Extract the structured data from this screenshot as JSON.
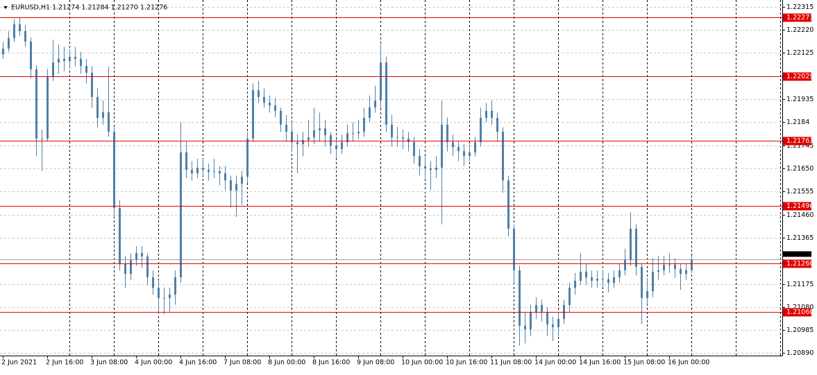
{
  "chart_data": {
    "type": "candlestick",
    "title": "EURUSD,H1  1.21274 1.21284 1.21270 1.21276",
    "color": "#4f7fa6",
    "ylim": [
      1.2088,
      1.22343
    ],
    "yticks": [
      1.22315,
      {
        "value": 1.2222,
        "label": "1.22220"
      },
      1.22125,
      1.21935,
      1.2184,
      1.21745,
      {
        "value": 1.2165,
        "label": "1.21650"
      },
      1.21555,
      {
        "value": 1.2146,
        "label": "1.21460"
      },
      1.21365,
      1.21175,
      {
        "value": 1.2108,
        "label": "1.21080"
      },
      1.20985,
      {
        "value": 1.2089,
        "label": "1.20890"
      }
    ],
    "grid": true,
    "levels": [
      1.22273,
      1.22029,
      1.21763,
      1.21496,
      {
        "value": 1.2126,
        "label": "1.21260"
      },
      {
        "value": 1.2106,
        "label": "1.21060"
      }
    ],
    "level_color": "#e00000",
    "current_price": 1.21276,
    "categories": [
      "2 Jun 2021",
      null,
      null,
      null,
      null,
      null,
      null,
      null,
      "2 Jun 16:00",
      null,
      null,
      null,
      null,
      null,
      null,
      null,
      "3 Jun 08:00",
      null,
      null,
      null,
      null,
      null,
      null,
      null,
      "4 Jun 00:00",
      null,
      null,
      null,
      null,
      null,
      null,
      null,
      "4 Jun 16:00",
      null,
      null,
      null,
      null,
      null,
      null,
      null,
      "7 Jun 08:00",
      null,
      null,
      null,
      null,
      null,
      null,
      null,
      "8 Jun 00:00",
      null,
      null,
      null,
      null,
      null,
      null,
      null,
      "8 Jun 16:00",
      null,
      null,
      null,
      null,
      null,
      null,
      null,
      "9 Jun 08:00",
      null,
      null,
      null,
      null,
      null,
      null,
      null,
      "10 Jun 00:00",
      null,
      null,
      null,
      null,
      null,
      null,
      null,
      "10 Jun 16:00",
      null,
      null,
      null,
      null,
      null,
      null,
      null,
      "11 Jun 08:00",
      null,
      null,
      null,
      null,
      null,
      null,
      null,
      "14 Jun 00:00",
      null,
      null,
      null,
      null,
      null,
      null,
      null,
      "14 Jun 16:00",
      null,
      null,
      null,
      null,
      null,
      null,
      null,
      "15 Jun 08:00",
      null,
      null,
      null,
      null,
      null,
      null,
      null,
      "16 Jun 00:00",
      null,
      null,
      null,
      null
    ],
    "candles": [
      [
        1.2212,
        1.2217,
        1.221,
        1.22143
      ],
      [
        1.22143,
        1.22215,
        1.2213,
        1.22186
      ],
      [
        1.22186,
        1.22265,
        1.2217,
        1.22243
      ],
      [
        1.22243,
        1.2227,
        1.22195,
        1.22215
      ],
      [
        1.22215,
        1.2224,
        1.2215,
        1.22172
      ],
      [
        1.22172,
        1.2219,
        1.2202,
        1.22058
      ],
      [
        1.22058,
        1.22075,
        1.217,
        1.21773
      ],
      [
        1.21773,
        1.2181,
        1.2164,
        1.21773
      ],
      [
        1.21773,
        1.2206,
        1.2176,
        1.22029
      ],
      [
        1.22029,
        1.2218,
        1.2201,
        1.22086
      ],
      [
        1.22086,
        1.2216,
        1.2204,
        1.22101
      ],
      [
        1.22101,
        1.2215,
        1.2205,
        1.22092
      ],
      [
        1.22092,
        1.2214,
        1.2206,
        1.22109
      ],
      [
        1.22109,
        1.2215,
        1.2207,
        1.22101
      ],
      [
        1.22101,
        1.2213,
        1.2204,
        1.22072
      ],
      [
        1.22072,
        1.221,
        1.22,
        1.22044
      ],
      [
        1.22044,
        1.2207,
        1.219,
        1.21944
      ],
      [
        1.21944,
        1.2198,
        1.2182,
        1.21858
      ],
      [
        1.21858,
        1.2193,
        1.2183,
        1.21881
      ],
      [
        1.21881,
        1.2207,
        1.2178,
        1.21801
      ],
      [
        1.21801,
        1.2182,
        1.2145,
        1.21487
      ],
      [
        1.21487,
        1.2152,
        1.2123,
        1.21259
      ],
      [
        1.21259,
        1.2129,
        1.2116,
        1.21216
      ],
      [
        1.21216,
        1.213,
        1.2119,
        1.21273
      ],
      [
        1.21273,
        1.2133,
        1.2125,
        1.21302
      ],
      [
        1.21302,
        1.2133,
        1.2124,
        1.21288
      ],
      [
        1.21288,
        1.213,
        1.2117,
        1.21202
      ],
      [
        1.21202,
        1.2123,
        1.2113,
        1.21159
      ],
      [
        1.21159,
        1.2119,
        1.2105,
        1.21117
      ],
      [
        1.21117,
        1.2116,
        1.2105,
        1.21117
      ],
      [
        1.21117,
        1.2116,
        1.2106,
        1.21131
      ],
      [
        1.21131,
        1.2123,
        1.2109,
        1.21202
      ],
      [
        1.21202,
        1.2184,
        1.2118,
        1.21716
      ],
      [
        1.21716,
        1.2176,
        1.2161,
        1.21644
      ],
      [
        1.21644,
        1.2168,
        1.216,
        1.2163
      ],
      [
        1.2163,
        1.2169,
        1.2161,
        1.21653
      ],
      [
        1.21653,
        1.2169,
        1.2162,
        1.21644
      ],
      [
        1.21644,
        1.2167,
        1.216,
        1.21636
      ],
      [
        1.21636,
        1.2169,
        1.2161,
        1.21639
      ],
      [
        1.21639,
        1.2166,
        1.2158,
        1.2163
      ],
      [
        1.2163,
        1.2166,
        1.2156,
        1.21601
      ],
      [
        1.21601,
        1.2162,
        1.2149,
        1.21559
      ],
      [
        1.21559,
        1.2162,
        1.2145,
        1.21587
      ],
      [
        1.21587,
        1.2164,
        1.215,
        1.21616
      ],
      [
        1.21616,
        1.218,
        1.2159,
        1.21773
      ],
      [
        1.21773,
        1.22,
        1.2176,
        1.21972
      ],
      [
        1.21972,
        1.2201,
        1.2192,
        1.21944
      ],
      [
        1.21944,
        1.2198,
        1.219,
        1.21921
      ],
      [
        1.21921,
        1.2195,
        1.2188,
        1.21909
      ],
      [
        1.21909,
        1.2194,
        1.2186,
        1.21887
      ],
      [
        1.21887,
        1.219,
        1.218,
        1.2183
      ],
      [
        1.2183,
        1.2187,
        1.2176,
        1.21801
      ],
      [
        1.21801,
        1.2184,
        1.2172,
        1.21758
      ],
      [
        1.21758,
        1.2179,
        1.2163,
        1.2175
      ],
      [
        1.2175,
        1.218,
        1.217,
        1.21767
      ],
      [
        1.21767,
        1.2185,
        1.2174,
        1.21778
      ],
      [
        1.21778,
        1.219,
        1.2175,
        1.21807
      ],
      [
        1.21807,
        1.2188,
        1.2176,
        1.21815
      ],
      [
        1.21815,
        1.2185,
        1.2174,
        1.21787
      ],
      [
        1.21787,
        1.218,
        1.2171,
        1.21744
      ],
      [
        1.21744,
        1.2177,
        1.2169,
        1.2173
      ],
      [
        1.2173,
        1.2179,
        1.2171,
        1.21758
      ],
      [
        1.21758,
        1.2183,
        1.2174,
        1.21795
      ],
      [
        1.21795,
        1.2184,
        1.2176,
        1.21795
      ],
      [
        1.21795,
        1.2185,
        1.2177,
        1.21801
      ],
      [
        1.21801,
        1.219,
        1.2178,
        1.21858
      ],
      [
        1.21858,
        1.2195,
        1.2184,
        1.21901
      ],
      [
        1.21901,
        1.2199,
        1.2188,
        1.21929
      ],
      [
        1.21929,
        1.2216,
        1.219,
        1.22086
      ],
      [
        1.22086,
        1.2211,
        1.218,
        1.2183
      ],
      [
        1.2183,
        1.2187,
        1.2174,
        1.21778
      ],
      [
        1.21778,
        1.2182,
        1.2174,
        1.21778
      ],
      [
        1.21778,
        1.2181,
        1.2173,
        1.21773
      ],
      [
        1.21773,
        1.218,
        1.2172,
        1.21758
      ],
      [
        1.21758,
        1.2178,
        1.2167,
        1.21701
      ],
      [
        1.21701,
        1.2173,
        1.2162,
        1.21659
      ],
      [
        1.21659,
        1.217,
        1.2161,
        1.2165
      ],
      [
        1.2165,
        1.2168,
        1.2156,
        1.21644
      ],
      [
        1.21644,
        1.217,
        1.2161,
        1.21653
      ],
      [
        1.21653,
        1.2193,
        1.2142,
        1.2183
      ],
      [
        1.2183,
        1.2186,
        1.2172,
        1.21758
      ],
      [
        1.21758,
        1.2179,
        1.217,
        1.21738
      ],
      [
        1.21738,
        1.2176,
        1.2168,
        1.21721
      ],
      [
        1.21721,
        1.2175,
        1.2166,
        1.21701
      ],
      [
        1.21701,
        1.2175,
        1.2168,
        1.21716
      ],
      [
        1.21716,
        1.2178,
        1.217,
        1.21758
      ],
      [
        1.21758,
        1.219,
        1.2174,
        1.21858
      ],
      [
        1.21858,
        1.2192,
        1.2184,
        1.21887
      ],
      [
        1.21887,
        1.2193,
        1.2183,
        1.21858
      ],
      [
        1.21858,
        1.2188,
        1.2176,
        1.21801
      ],
      [
        1.21801,
        1.2182,
        1.2155,
        1.21601
      ],
      [
        1.21601,
        1.2162,
        1.2137,
        1.21402
      ],
      [
        1.21402,
        1.2142,
        1.2118,
        1.21231
      ],
      [
        1.21231,
        1.2125,
        1.2092,
        1.21003
      ],
      [
        1.21003,
        1.2106,
        1.2093,
        1.20988
      ],
      [
        1.20988,
        1.2109,
        1.2096,
        1.2106
      ],
      [
        1.2106,
        1.2112,
        1.2103,
        1.21088
      ],
      [
        1.21088,
        1.2111,
        1.2102,
        1.2106
      ],
      [
        1.2106,
        1.2108,
        1.2096,
        1.21008
      ],
      [
        1.21008,
        1.2104,
        1.2094,
        1.20997
      ],
      [
        1.20997,
        1.2106,
        1.2096,
        1.21031
      ],
      [
        1.21031,
        1.2111,
        1.2101,
        1.21088
      ],
      [
        1.21088,
        1.2118,
        1.2106,
        1.21159
      ],
      [
        1.21159,
        1.2122,
        1.2113,
        1.21188
      ],
      [
        1.21188,
        1.213,
        1.2117,
        1.21225
      ],
      [
        1.21225,
        1.2126,
        1.2117,
        1.21202
      ],
      [
        1.21202,
        1.2123,
        1.2116,
        1.21188
      ],
      [
        1.21188,
        1.2123,
        1.2116,
        1.21196
      ],
      [
        1.21196,
        1.2123,
        1.2116,
        1.21194
      ],
      [
        1.21194,
        1.2122,
        1.2114,
        1.21179
      ],
      [
        1.21179,
        1.2123,
        1.2116,
        1.21202
      ],
      [
        1.21202,
        1.2126,
        1.2118,
        1.21231
      ],
      [
        1.21231,
        1.2132,
        1.2121,
        1.21273
      ],
      [
        1.21273,
        1.2147,
        1.2125,
        1.21402
      ],
      [
        1.21402,
        1.2142,
        1.2121,
        1.21245
      ],
      [
        1.21245,
        1.2126,
        1.2101,
        1.21117
      ],
      [
        1.21117,
        1.212,
        1.2109,
        1.21145
      ],
      [
        1.21145,
        1.2128,
        1.2112,
        1.21225
      ],
      [
        1.21225,
        1.2129,
        1.2119,
        1.21231
      ],
      [
        1.21231,
        1.2129,
        1.2121,
        1.21254
      ],
      [
        1.21254,
        1.213,
        1.2122,
        1.21254
      ],
      [
        1.21254,
        1.2128,
        1.212,
        1.21236
      ],
      [
        1.21236,
        1.2126,
        1.2115,
        1.21216
      ],
      [
        1.21216,
        1.2126,
        1.2119,
        1.21231
      ],
      [
        1.21231,
        1.2129,
        1.2122,
        1.21276
      ]
    ]
  }
}
